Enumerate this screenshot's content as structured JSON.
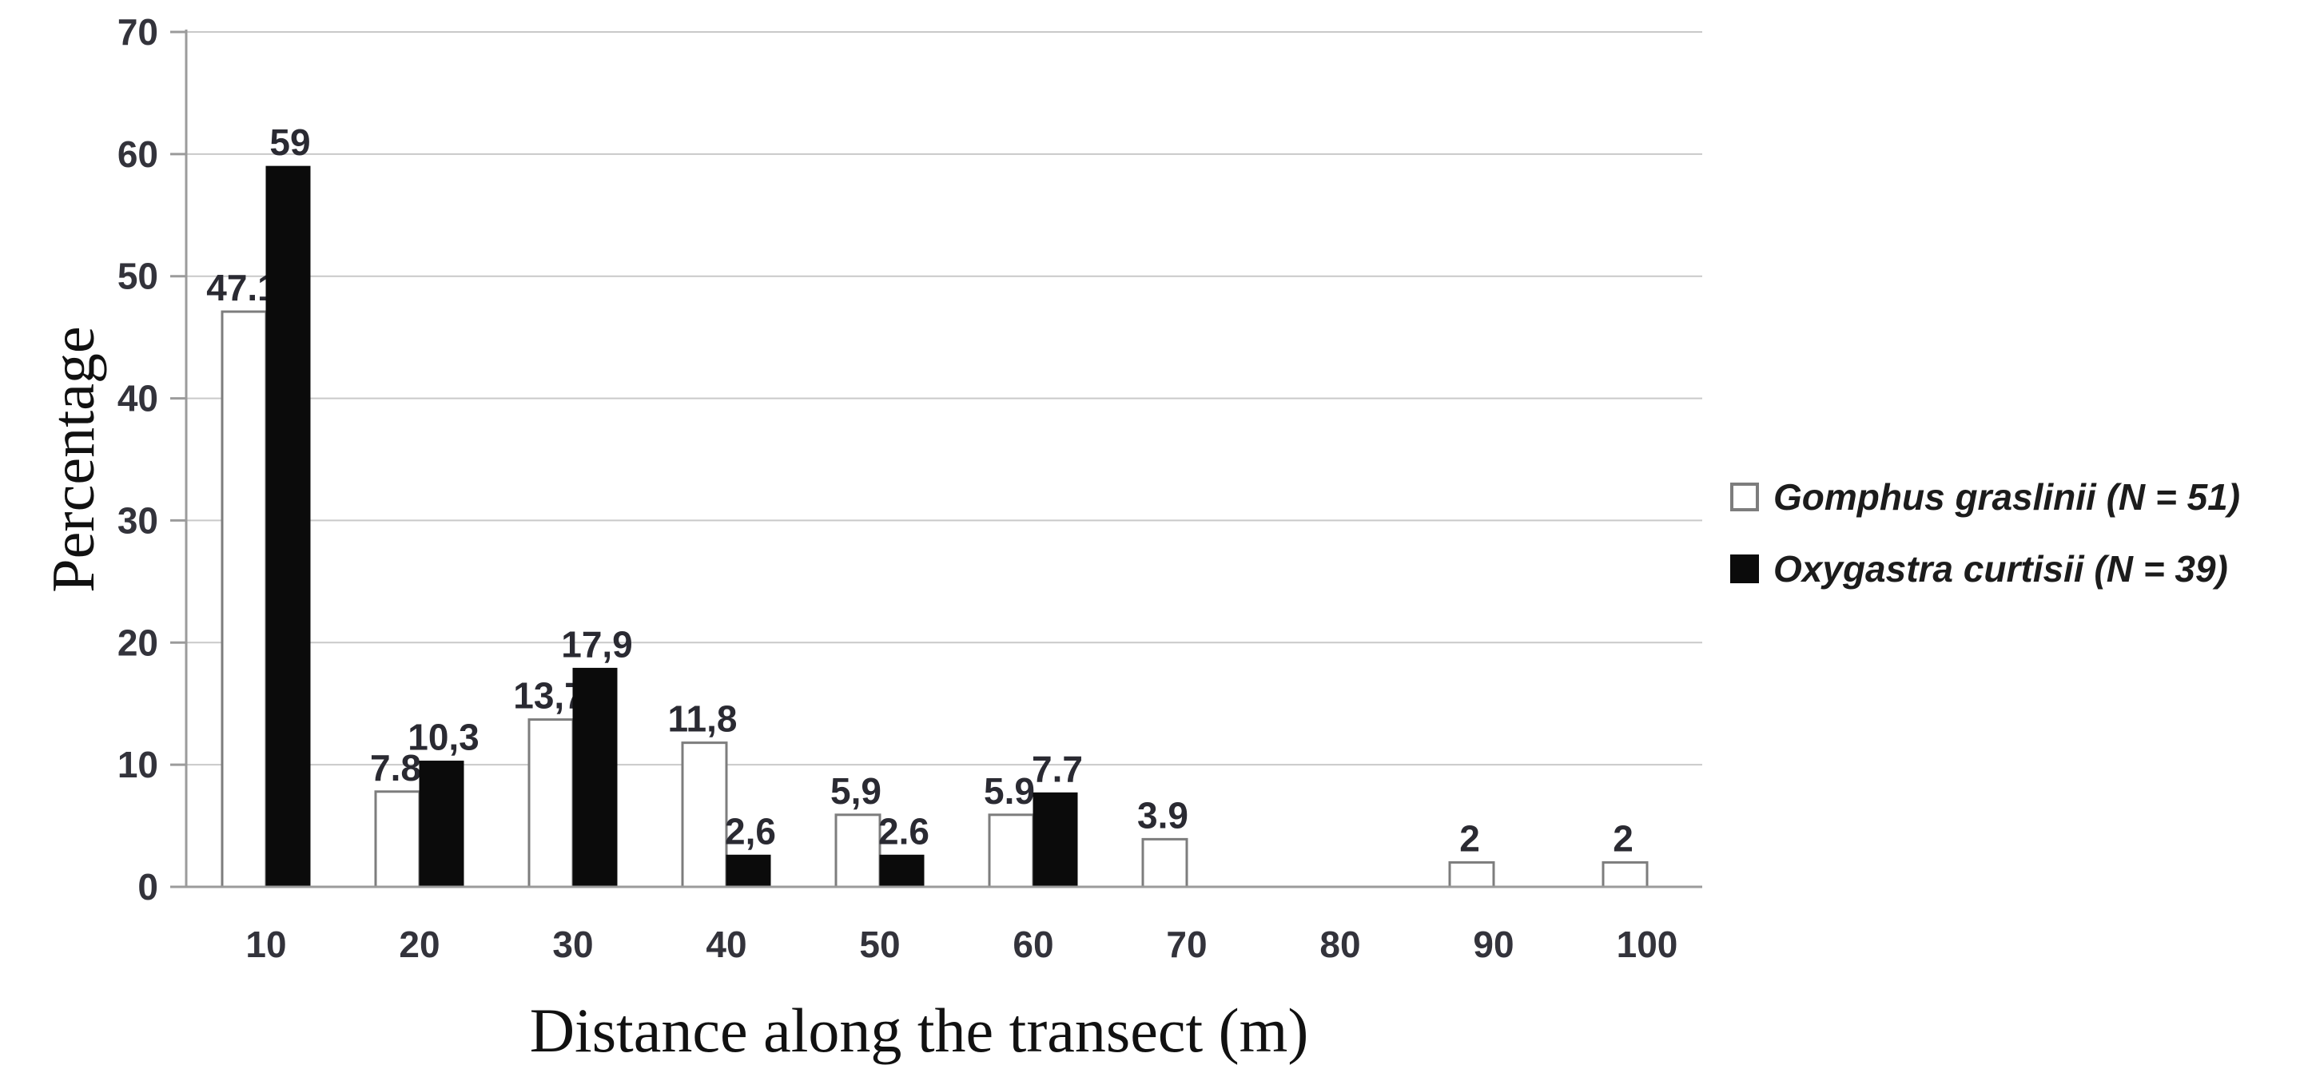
{
  "chart_data": {
    "type": "bar",
    "title": "",
    "categories": [
      "10",
      "20",
      "30",
      "40",
      "50",
      "60",
      "70",
      "80",
      "90",
      "100"
    ],
    "series": [
      {
        "name": "Gomphus graslinii (N = 51)",
        "values": [
          47.1,
          7.8,
          13.7,
          11.8,
          5.9,
          5.9,
          3.9,
          0,
          2,
          2
        ],
        "labels": [
          "47.1",
          "7.8",
          "13,7",
          "11,8",
          "5,9",
          "5.9",
          "3.9",
          "",
          "2",
          "2"
        ],
        "fill": "#ffffff",
        "stroke": "#7d7d7d"
      },
      {
        "name": "Oxygastra curtisii (N = 39)",
        "values": [
          59,
          10.3,
          17.9,
          2.6,
          2.6,
          7.7,
          0,
          0,
          0,
          0
        ],
        "labels": [
          "59",
          "10,3",
          "17,9",
          "2,6",
          "2.6",
          "7.7",
          "",
          "",
          "",
          ""
        ],
        "fill": "#0b0b0b",
        "stroke": "#0b0b0b"
      }
    ],
    "xlabel": "Distance along the transect (m)",
    "ylabel": "Percentage",
    "ylim": [
      0,
      70
    ],
    "yticks": [
      0,
      10,
      20,
      30,
      40,
      50,
      60,
      70
    ],
    "grid": true,
    "legend_position": "right"
  },
  "colors": {
    "gridline": "#c9c9c9",
    "axis": "#9b9b9b",
    "tick_text": "#33333b",
    "value_text": "#2a2a32",
    "title_text": "#111111",
    "legend_text": "#1c1c1c"
  }
}
